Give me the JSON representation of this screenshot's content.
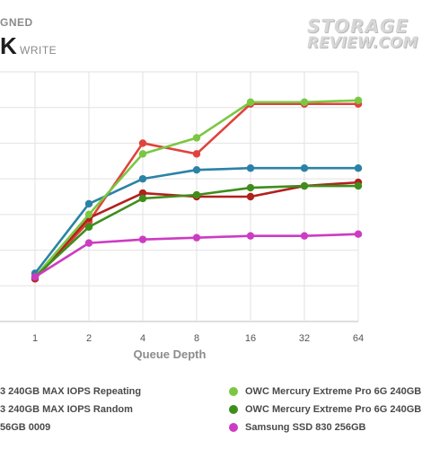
{
  "header": {
    "top_text": "GNED",
    "big_text": "K",
    "sub_text": "WRITE"
  },
  "logo": {
    "line1": "STORAGE",
    "line2": "REVIEW.COM"
  },
  "chart_data": {
    "type": "line",
    "xlabel": "Queue Depth",
    "ylabel": "",
    "x_labels": [
      "1",
      "2",
      "4",
      "8",
      "16",
      "32",
      "64"
    ],
    "ylim": [
      0,
      7
    ],
    "grid": true,
    "legend_position": "bottom",
    "series": [
      {
        "name": "3 240GB MAX IOPS Repeating",
        "color": "#e0433d",
        "values": [
          1.2,
          2.8,
          5.0,
          4.7,
          6.1,
          6.1,
          6.1
        ]
      },
      {
        "name": "3 240GB MAX IOPS Random",
        "color": "#b2211d",
        "values": [
          1.2,
          2.9,
          3.6,
          3.5,
          3.5,
          3.8,
          3.9
        ]
      },
      {
        "name": "56GB 0009",
        "color": "#2b82a7",
        "values": [
          1.35,
          3.3,
          4.0,
          4.25,
          4.3,
          4.3,
          4.3
        ]
      },
      {
        "name": "OWC Mercury Extreme Pro 6G 240GB",
        "color": "#7bc742",
        "values": [
          1.25,
          3.0,
          4.7,
          5.15,
          6.15,
          6.15,
          6.2
        ]
      },
      {
        "name": "OWC Mercury Extreme Pro 6G 240GB",
        "color": "#3e8e1c",
        "values": [
          1.25,
          2.65,
          3.45,
          3.55,
          3.75,
          3.8,
          3.8
        ]
      },
      {
        "name": "Samsung SSD 830 256GB",
        "color": "#cc3cc3",
        "values": [
          1.25,
          2.2,
          2.3,
          2.35,
          2.4,
          2.4,
          2.45
        ]
      }
    ]
  },
  "legend": [
    {
      "label": "3 240GB MAX IOPS Repeating",
      "color": "#e0433d",
      "column": "left"
    },
    {
      "label": "3 240GB MAX IOPS Random",
      "color": "#b2211d",
      "column": "left"
    },
    {
      "label": "56GB 0009",
      "color": "#2b82a7",
      "column": "left"
    },
    {
      "label": "OWC Mercury Extreme Pro 6G 240GB",
      "color": "#7bc742",
      "column": "right"
    },
    {
      "label": "OWC Mercury Extreme Pro 6G 240GB",
      "color": "#3e8e1c",
      "column": "right"
    },
    {
      "label": "Samsung SSD 830 256GB",
      "color": "#cc3cc3",
      "column": "right"
    }
  ]
}
